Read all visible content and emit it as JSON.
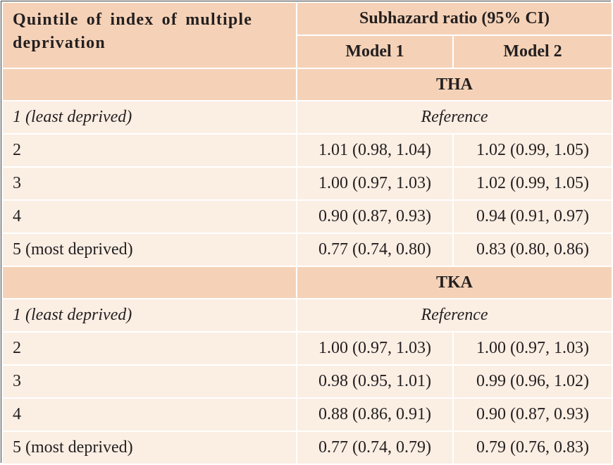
{
  "header": {
    "row_label": "Quintile of index of multiple deprivation",
    "group_label": "Subhazard ratio (95% CI)",
    "model1": "Model 1",
    "model2": "Model 2"
  },
  "sections": [
    {
      "title": "THA",
      "reference_label": "1 (least deprived)",
      "reference_text": "Reference",
      "rows": [
        {
          "label": "2",
          "m1": "1.01 (0.98, 1.04)",
          "m2": "1.02 (0.99, 1.05)"
        },
        {
          "label": "3",
          "m1": "1.00 (0.97, 1.03)",
          "m2": "1.02 (0.99, 1.05)"
        },
        {
          "label": "4",
          "m1": "0.90 (0.87, 0.93)",
          "m2": "0.94 (0.91, 0.97)"
        },
        {
          "label": "5 (most deprived)",
          "m1": "0.77 (0.74, 0.80)",
          "m2": "0.83 (0.80, 0.86)"
        }
      ]
    },
    {
      "title": "TKA",
      "reference_label": "1 (least deprived)",
      "reference_text": "Reference",
      "rows": [
        {
          "label": "2",
          "m1": "1.00 (0.97, 1.03)",
          "m2": "1.00 (0.97, 1.03)"
        },
        {
          "label": "3",
          "m1": "0.98 (0.95, 1.01)",
          "m2": "0.99 (0.96, 1.02)"
        },
        {
          "label": "4",
          "m1": "0.88 (0.86, 0.91)",
          "m2": "0.90 (0.87, 0.93)"
        },
        {
          "label": "5 (most deprived)",
          "m1": "0.77 (0.74, 0.79)",
          "m2": "0.79 (0.76, 0.83)"
        }
      ]
    }
  ],
  "colors": {
    "header_fill": "#f5d2b7",
    "body_fill": "#fbeee3",
    "rule": "#ffffff",
    "border": "#3a3a3a",
    "text": "#231f20"
  }
}
